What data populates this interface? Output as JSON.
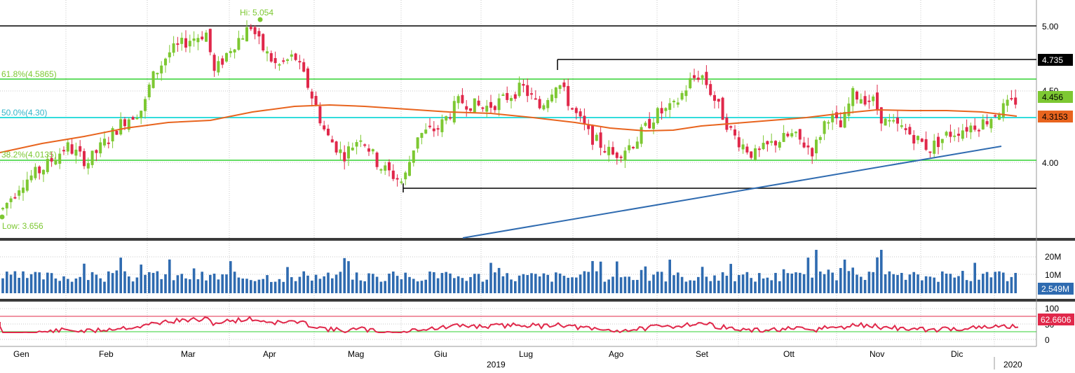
{
  "chart_data": {
    "type": "candlestick",
    "x_axis": {
      "months": [
        "Gen",
        "Feb",
        "Mar",
        "Apr",
        "Mag",
        "Giu",
        "Lug",
        "Ago",
        "Set",
        "Ott",
        "Nov",
        "Dic"
      ],
      "year_labels": [
        "2019",
        "2020"
      ]
    },
    "price_panel": {
      "y_ticks": [
        "5.00",
        "4.50",
        "4.00"
      ],
      "hi_label": "Hi: 5.054",
      "low_label": "Low: 3.656",
      "fib_labels": [
        "61.8%(4.5865)",
        "50.0%(4.30)",
        "38.2%(4.0135)"
      ],
      "levels": {
        "top_line": 5.0,
        "resistance": 4.735,
        "fib_618": 4.5865,
        "fib_500": 4.3,
        "fib_382": 4.0135,
        "support": 3.9
      },
      "badges": [
        {
          "text": "4.735",
          "color": "#000000"
        },
        {
          "text": "4.456",
          "color": "#7dc832"
        },
        {
          "text": "4.3153",
          "color": "#e8641e"
        }
      ],
      "ohlc_sample": [
        {
          "month": "Gen",
          "open": 3.7,
          "close": 4.05
        },
        {
          "month": "Feb",
          "open": 4.05,
          "close": 4.4
        },
        {
          "month": "Mar",
          "open": 4.4,
          "close": 4.95
        },
        {
          "month": "Apr",
          "open": 4.95,
          "close": 4.6
        },
        {
          "month": "Mag",
          "open": 4.55,
          "close": 3.95
        },
        {
          "month": "Giu",
          "open": 3.95,
          "close": 4.35
        },
        {
          "month": "Lug",
          "open": 4.35,
          "close": 4.55
        },
        {
          "month": "Ago",
          "open": 4.55,
          "close": 4.1
        },
        {
          "month": "Set",
          "open": 4.1,
          "close": 4.65
        },
        {
          "month": "Ott",
          "open": 4.6,
          "close": 4.05
        },
        {
          "month": "Nov",
          "open": 4.1,
          "close": 4.45
        },
        {
          "month": "Dic",
          "open": 4.15,
          "close": 4.456
        }
      ]
    },
    "volume_panel": {
      "y_ticks": [
        "20M",
        "10M"
      ],
      "last_badge": "2.549M"
    },
    "rsi_panel": {
      "y_ticks": [
        "100",
        "50",
        "0"
      ],
      "last_badge": "62.6606"
    }
  },
  "colors": {
    "up": "#7dc832",
    "down": "#e0284a",
    "ma": "#e8641e",
    "fib_green": "#32d232",
    "fib_cyan": "#32dcdc",
    "trend": "#2f6bb0",
    "volume": "#2f6bb0",
    "rsi": "#e0284a"
  }
}
